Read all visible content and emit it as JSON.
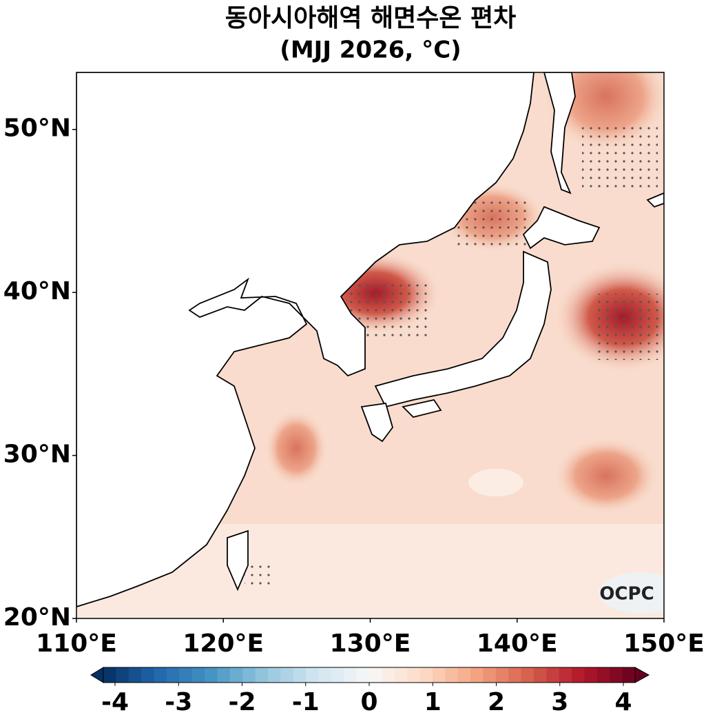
{
  "map": {
    "title": "동아시아해역 해면수온 편차",
    "subtitle": "(MJJ 2026, °C)",
    "lat_range": [
      20,
      53.5
    ],
    "lon_range": [
      110,
      150
    ],
    "lat_ticks": [
      {
        "value": 20,
        "label": "20°N"
      },
      {
        "value": 30,
        "label": "30°N"
      },
      {
        "value": 40,
        "label": "40°N"
      },
      {
        "value": 50,
        "label": "50°N"
      }
    ],
    "lon_ticks": [
      {
        "value": 110,
        "label": "110°E"
      },
      {
        "value": 120,
        "label": "120°E"
      },
      {
        "value": 130,
        "label": "130°E"
      },
      {
        "value": 140,
        "label": "140°E"
      },
      {
        "value": 150,
        "label": "150°E"
      }
    ],
    "logo": "OCPC"
  },
  "colorbar": {
    "range": [
      -4,
      4
    ],
    "ticks": [
      -4,
      -3,
      -2,
      -1,
      0,
      1,
      2,
      3,
      4
    ]
  }
}
